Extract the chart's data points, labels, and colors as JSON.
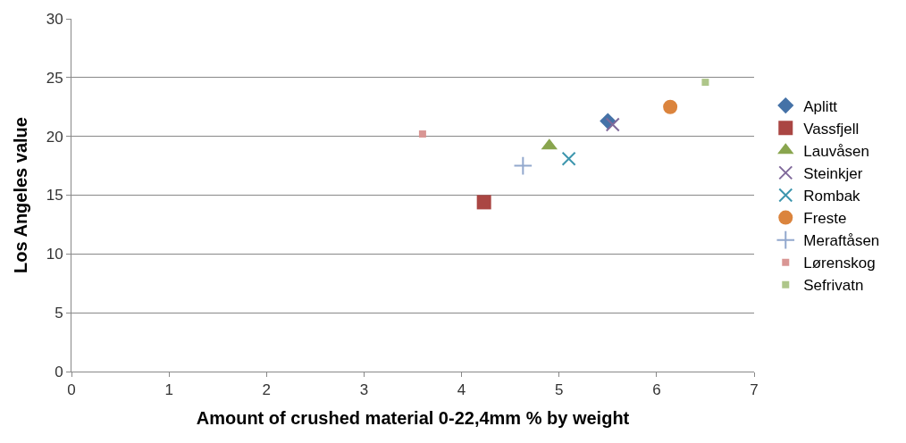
{
  "chart_data": {
    "type": "scatter",
    "xlabel": "Amount of crushed material 0-22,4mm % by weight",
    "ylabel": "Los Angeles value",
    "xlim": [
      0,
      7
    ],
    "xticks": [
      0,
      1,
      2,
      3,
      4,
      5,
      6,
      7
    ],
    "ylim": [
      0,
      30
    ],
    "yticks": [
      0,
      5,
      10,
      15,
      20,
      25,
      30
    ],
    "grid": "y",
    "legend": "right",
    "series": [
      {
        "name": "Aplitt",
        "color": "#4572a7",
        "marker": "diamond",
        "x": [
          5.5
        ],
        "values": [
          21.3
        ]
      },
      {
        "name": "Vassfjell",
        "color": "#aa4643",
        "marker": "square",
        "x": [
          4.23
        ],
        "values": [
          14.4
        ]
      },
      {
        "name": "Lauvåsen",
        "color": "#89a54e",
        "marker": "triangle",
        "x": [
          4.9
        ],
        "values": [
          19.2
        ]
      },
      {
        "name": "Steinkjer",
        "color": "#80699b",
        "marker": "cross",
        "x": [
          5.55
        ],
        "values": [
          21.0
        ]
      },
      {
        "name": "Rombak",
        "color": "#3d96ae",
        "marker": "cross",
        "x": [
          5.1
        ],
        "values": [
          18.1
        ]
      },
      {
        "name": "Freste",
        "color": "#db843d",
        "marker": "circle",
        "x": [
          6.14
        ],
        "values": [
          22.5
        ]
      },
      {
        "name": "Meraftåsen",
        "color": "#92a8cd",
        "marker": "plus",
        "x": [
          4.63
        ],
        "values": [
          17.5
        ]
      },
      {
        "name": "Lørenskog",
        "color": "#d99694",
        "marker": "square",
        "x": [
          3.6
        ],
        "values": [
          20.2
        ]
      },
      {
        "name": "Sefrivatn",
        "color": "#aec68a",
        "marker": "square",
        "x": [
          6.5
        ],
        "values": [
          24.6
        ]
      }
    ]
  }
}
